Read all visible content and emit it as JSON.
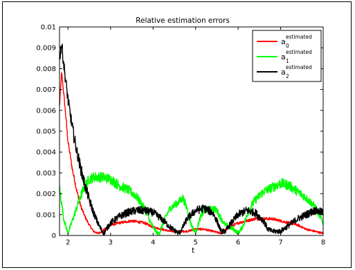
{
  "chart_data": {
    "type": "line",
    "title": "Relative estimation errors",
    "xlabel": "t",
    "ylabel": "",
    "xlim": [
      1.8,
      8
    ],
    "ylim": [
      0,
      0.01
    ],
    "xticks": [
      2,
      3,
      4,
      5,
      6,
      7,
      8
    ],
    "xtick_labels": [
      "2",
      "3",
      "4",
      "5",
      "6",
      "7",
      "8"
    ],
    "yticks": [
      0,
      0.001,
      0.002,
      0.003,
      0.004,
      0.005,
      0.006,
      0.007,
      0.008,
      0.009,
      0.01
    ],
    "ytick_labels": [
      "0",
      "0.001",
      "0.002",
      "0.003",
      "0.004",
      "0.005",
      "0.006",
      "0.007",
      "0.008",
      "0.009",
      "0.01"
    ],
    "grid": false,
    "legend_position": "top-right",
    "series": [
      {
        "name": "a",
        "subscript": "0",
        "superscript": "estimated",
        "color": "#ff0000",
        "x": [
          1.8,
          1.85,
          1.9,
          2.0,
          2.1,
          2.2,
          2.3,
          2.4,
          2.5,
          2.6,
          2.7,
          2.8,
          3.0,
          3.2,
          3.5,
          3.8,
          4.0,
          4.2,
          4.4,
          4.6,
          4.8,
          5.0,
          5.2,
          5.4,
          5.6,
          5.8,
          6.0,
          6.2,
          6.4,
          6.6,
          6.8,
          7.0,
          7.2,
          7.4,
          7.6,
          7.8,
          8.0
        ],
        "y": [
          0.0062,
          0.0078,
          0.0068,
          0.0045,
          0.0032,
          0.0022,
          0.0014,
          0.0009,
          0.0005,
          0.0002,
          0.0001,
          0.0002,
          0.0005,
          0.0006,
          0.0007,
          0.0006,
          0.0004,
          0.0003,
          0.0002,
          0.0002,
          0.0002,
          0.0003,
          0.0003,
          0.0002,
          0.0001,
          0.0004,
          0.0006,
          0.0007,
          0.0008,
          0.0008,
          0.0008,
          0.0007,
          0.0006,
          0.0005,
          0.0003,
          0.0002,
          0.0001
        ],
        "noise": 0.00025
      },
      {
        "name": "a",
        "subscript": "1",
        "superscript": "estimated",
        "color": "#00ff00",
        "x": [
          1.8,
          1.9,
          2.0,
          2.1,
          2.2,
          2.3,
          2.4,
          2.5,
          2.6,
          2.8,
          3.0,
          3.2,
          3.4,
          3.6,
          3.8,
          3.9,
          4.0,
          4.1,
          4.15,
          4.2,
          4.3,
          4.4,
          4.6,
          4.7,
          4.8,
          4.9,
          5.0,
          5.1,
          5.2,
          5.4,
          5.5,
          5.6,
          5.7,
          5.8,
          5.9,
          6.0,
          6.1,
          6.2,
          6.3,
          6.4,
          6.6,
          6.8,
          7.0,
          7.2,
          7.4,
          7.6,
          7.8,
          7.9,
          8.0
        ],
        "y": [
          0.0023,
          0.0008,
          0.0001,
          0.0007,
          0.0013,
          0.0019,
          0.0024,
          0.0027,
          0.0028,
          0.0028,
          0.0027,
          0.0024,
          0.0022,
          0.0019,
          0.0013,
          0.0008,
          0.0004,
          0.0001,
          0.0001,
          0.0004,
          0.0009,
          0.0013,
          0.0016,
          0.0018,
          0.0013,
          0.0005,
          0.0001,
          0.0008,
          0.0012,
          0.0013,
          0.0012,
          0.0008,
          0.0005,
          0.0004,
          0.0003,
          0.0001,
          0.0004,
          0.0009,
          0.0014,
          0.0017,
          0.0021,
          0.0023,
          0.0025,
          0.0024,
          0.0021,
          0.0018,
          0.0014,
          0.001,
          0.0006
        ],
        "noise": 0.0005
      },
      {
        "name": "a",
        "subscript": "2",
        "superscript": "estimated",
        "color": "#000000",
        "x": [
          1.8,
          1.85,
          1.9,
          2.0,
          2.1,
          2.2,
          2.3,
          2.4,
          2.5,
          2.6,
          2.7,
          2.8,
          2.85,
          2.9,
          3.0,
          3.2,
          3.4,
          3.6,
          3.8,
          4.0,
          4.2,
          4.4,
          4.6,
          4.65,
          4.8,
          5.0,
          5.2,
          5.4,
          5.5,
          5.6,
          5.7,
          5.8,
          6.0,
          6.2,
          6.4,
          6.6,
          6.7,
          6.8,
          7.0,
          7.2,
          7.4,
          7.6,
          7.8,
          8.0
        ],
        "y": [
          0.0085,
          0.0092,
          0.0082,
          0.0065,
          0.0052,
          0.0041,
          0.0032,
          0.0024,
          0.0017,
          0.0011,
          0.0006,
          0.0002,
          0.0001,
          0.0003,
          0.0006,
          0.0009,
          0.0011,
          0.0012,
          0.0012,
          0.0011,
          0.0008,
          0.0004,
          0.0001,
          0.0002,
          0.0008,
          0.0012,
          0.0013,
          0.0011,
          0.0007,
          0.0002,
          0.0002,
          0.0005,
          0.001,
          0.0012,
          0.0011,
          0.0007,
          0.0003,
          0.0002,
          0.0002,
          0.0005,
          0.0008,
          0.001,
          0.0012,
          0.0011
        ],
        "noise": 0.0006
      }
    ]
  }
}
